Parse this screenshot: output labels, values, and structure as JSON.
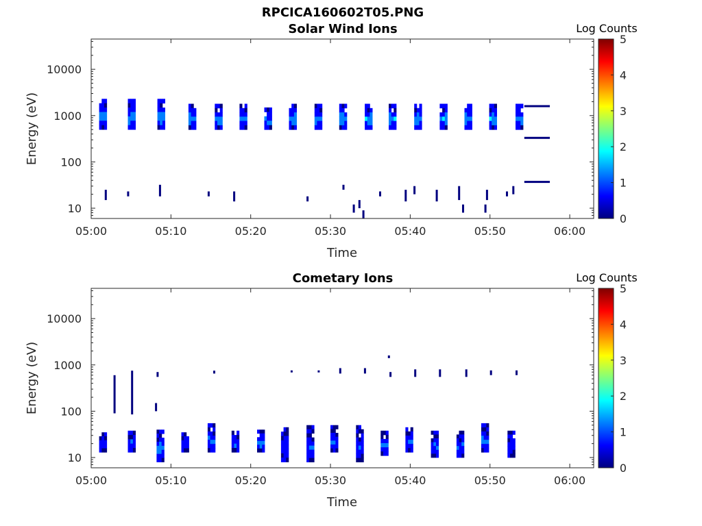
{
  "figure": {
    "title": "RPCICA160602T05.PNG"
  },
  "colors": {
    "map": [
      "#00007f",
      "#0000ff",
      "#007fff",
      "#00ffff",
      "#7fff7f",
      "#ffff00",
      "#ff7f00",
      "#ff0000",
      "#7f0000"
    ],
    "axis": "#262626"
  },
  "chart_data": [
    {
      "type": "heatmap",
      "title": "Solar Wind Ions",
      "xlabel": "Time",
      "ylabel": "Energy (eV)",
      "x_ticks": [
        "05:00",
        "05:10",
        "05:20",
        "05:30",
        "05:40",
        "05:50",
        "06:00"
      ],
      "y_ticks": [
        "10",
        "100",
        "1000",
        "10000"
      ],
      "y_scale": "log",
      "colorbar": {
        "label": "Log Counts",
        "ticks": [
          "0",
          "1",
          "2",
          "3",
          "4",
          "5"
        ],
        "range": [
          0,
          5
        ]
      },
      "xlim_minutes": [
        0,
        63
      ],
      "ylim": [
        6,
        45000
      ],
      "blocks": [
        {
          "t": 1.0,
          "e_lo": 500,
          "e_hi": 2300,
          "v": 1.4
        },
        {
          "t": 4.6,
          "e_lo": 500,
          "e_hi": 2300,
          "v": 1.5
        },
        {
          "t": 8.3,
          "e_lo": 500,
          "e_hi": 2300,
          "v": 1.6
        },
        {
          "t": 12.2,
          "e_lo": 500,
          "e_hi": 1800,
          "v": 1.4
        },
        {
          "t": 15.5,
          "e_lo": 500,
          "e_hi": 1800,
          "v": 1.4
        },
        {
          "t": 18.6,
          "e_lo": 500,
          "e_hi": 1800,
          "v": 1.4
        },
        {
          "t": 21.7,
          "e_lo": 500,
          "e_hi": 1500,
          "v": 1.4
        },
        {
          "t": 24.8,
          "e_lo": 500,
          "e_hi": 1800,
          "v": 1.5
        },
        {
          "t": 28.0,
          "e_lo": 500,
          "e_hi": 1800,
          "v": 1.5
        },
        {
          "t": 31.1,
          "e_lo": 500,
          "e_hi": 1800,
          "v": 1.6
        },
        {
          "t": 34.3,
          "e_lo": 500,
          "e_hi": 1800,
          "v": 1.6
        },
        {
          "t": 37.3,
          "e_lo": 500,
          "e_hi": 1800,
          "v": 1.5
        },
        {
          "t": 40.5,
          "e_lo": 500,
          "e_hi": 1800,
          "v": 1.6
        },
        {
          "t": 43.7,
          "e_lo": 500,
          "e_hi": 1800,
          "v": 1.5
        },
        {
          "t": 46.8,
          "e_lo": 500,
          "e_hi": 1800,
          "v": 1.5
        },
        {
          "t": 49.9,
          "e_lo": 500,
          "e_hi": 1800,
          "v": 1.5
        },
        {
          "t": 53.2,
          "e_lo": 500,
          "e_hi": 1800,
          "v": 1.5
        }
      ],
      "low_marks": [
        {
          "t": 1.7,
          "e_lo": 15,
          "e_hi": 25,
          "v": 0.3
        },
        {
          "t": 4.5,
          "e_lo": 18,
          "e_hi": 23,
          "v": 0.3
        },
        {
          "t": 8.5,
          "e_lo": 18,
          "e_hi": 32,
          "v": 0.3
        },
        {
          "t": 14.6,
          "e_lo": 18,
          "e_hi": 23,
          "v": 0.3
        },
        {
          "t": 17.8,
          "e_lo": 14,
          "e_hi": 23,
          "v": 0.3
        },
        {
          "t": 27.0,
          "e_lo": 14,
          "e_hi": 18,
          "v": 0.3
        },
        {
          "t": 31.5,
          "e_lo": 25,
          "e_hi": 32,
          "v": 0.3
        },
        {
          "t": 32.8,
          "e_lo": 8,
          "e_hi": 12,
          "v": 0.3
        },
        {
          "t": 33.5,
          "e_lo": 10,
          "e_hi": 15,
          "v": 0.3
        },
        {
          "t": 34.0,
          "e_lo": 6,
          "e_hi": 9,
          "v": 0.3
        },
        {
          "t": 36.1,
          "e_lo": 18,
          "e_hi": 23,
          "v": 0.3
        },
        {
          "t": 39.3,
          "e_lo": 14,
          "e_hi": 25,
          "v": 0.3
        },
        {
          "t": 40.4,
          "e_lo": 20,
          "e_hi": 30,
          "v": 0.3
        },
        {
          "t": 43.2,
          "e_lo": 14,
          "e_hi": 25,
          "v": 0.3
        },
        {
          "t": 46.0,
          "e_lo": 15,
          "e_hi": 30,
          "v": 0.3
        },
        {
          "t": 46.5,
          "e_lo": 8,
          "e_hi": 12,
          "v": 0.3
        },
        {
          "t": 49.5,
          "e_lo": 15,
          "e_hi": 25,
          "v": 0.3
        },
        {
          "t": 49.3,
          "e_lo": 8,
          "e_hi": 12,
          "v": 0.3
        },
        {
          "t": 52.0,
          "e_lo": 18,
          "e_hi": 23,
          "v": 0.3
        },
        {
          "t": 52.8,
          "e_lo": 20,
          "e_hi": 30,
          "v": 0.3
        }
      ],
      "lines": [
        {
          "t0": 54.3,
          "t1": 57.5,
          "e": 1600
        },
        {
          "t0": 54.3,
          "t1": 57.5,
          "e": 330
        },
        {
          "t0": 54.3,
          "t1": 57.5,
          "e": 37
        }
      ]
    },
    {
      "type": "heatmap",
      "title": "Cometary Ions",
      "xlabel": "Time",
      "ylabel": "Energy (eV)",
      "x_ticks": [
        "05:00",
        "05:10",
        "05:20",
        "05:30",
        "05:40",
        "05:50",
        "06:00"
      ],
      "y_ticks": [
        "10",
        "100",
        "1000",
        "10000"
      ],
      "y_scale": "log",
      "colorbar": {
        "label": "Log Counts",
        "ticks": [
          "0",
          "1",
          "2",
          "3",
          "4",
          "5"
        ],
        "range": [
          0,
          5
        ]
      },
      "xlim_minutes": [
        0,
        63
      ],
      "ylim": [
        6,
        45000
      ],
      "blocks": [
        {
          "t": 1.0,
          "e_lo": 13,
          "e_hi": 35,
          "v": 1.0
        },
        {
          "t": 4.6,
          "e_lo": 13,
          "e_hi": 38,
          "v": 1.2
        },
        {
          "t": 8.2,
          "e_lo": 8,
          "e_hi": 40,
          "v": 1.3
        },
        {
          "t": 11.3,
          "e_lo": 13,
          "e_hi": 35,
          "v": 0.9
        },
        {
          "t": 14.6,
          "e_lo": 13,
          "e_hi": 55,
          "v": 1.1
        },
        {
          "t": 17.6,
          "e_lo": 13,
          "e_hi": 38,
          "v": 1.1
        },
        {
          "t": 20.8,
          "e_lo": 13,
          "e_hi": 40,
          "v": 1.2
        },
        {
          "t": 23.8,
          "e_lo": 8,
          "e_hi": 45,
          "v": 0.9
        },
        {
          "t": 27.0,
          "e_lo": 8,
          "e_hi": 50,
          "v": 1.0
        },
        {
          "t": 30.0,
          "e_lo": 13,
          "e_hi": 50,
          "v": 1.1
        },
        {
          "t": 33.2,
          "e_lo": 8,
          "e_hi": 50,
          "v": 0.9
        },
        {
          "t": 36.3,
          "e_lo": 11,
          "e_hi": 38,
          "v": 1.1
        },
        {
          "t": 39.4,
          "e_lo": 13,
          "e_hi": 45,
          "v": 1.2
        },
        {
          "t": 42.6,
          "e_lo": 10,
          "e_hi": 38,
          "v": 1.1
        },
        {
          "t": 45.8,
          "e_lo": 10,
          "e_hi": 38,
          "v": 1.1
        },
        {
          "t": 48.9,
          "e_lo": 13,
          "e_hi": 55,
          "v": 1.2
        },
        {
          "t": 52.2,
          "e_lo": 10,
          "e_hi": 38,
          "v": 1.0
        }
      ],
      "mid_marks": [
        {
          "t": 2.8,
          "e_lo": 90,
          "e_hi": 600,
          "v": 0.3
        },
        {
          "t": 5.0,
          "e_lo": 85,
          "e_hi": 750,
          "v": 0.3
        },
        {
          "t": 8.0,
          "e_lo": 100,
          "e_hi": 150,
          "v": 0.3
        },
        {
          "t": 8.2,
          "e_lo": 550,
          "e_hi": 700,
          "v": 0.3
        },
        {
          "t": 15.3,
          "e_lo": 650,
          "e_hi": 750,
          "v": 0.3
        },
        {
          "t": 25.0,
          "e_lo": 700,
          "e_hi": 760,
          "v": 0.3
        },
        {
          "t": 28.4,
          "e_lo": 700,
          "e_hi": 760,
          "v": 0.3
        },
        {
          "t": 31.1,
          "e_lo": 650,
          "e_hi": 850,
          "v": 0.3
        },
        {
          "t": 34.2,
          "e_lo": 650,
          "e_hi": 850,
          "v": 0.3
        },
        {
          "t": 37.4,
          "e_lo": 550,
          "e_hi": 700,
          "v": 0.3
        },
        {
          "t": 37.2,
          "e_lo": 1400,
          "e_hi": 1600,
          "v": 0.3
        },
        {
          "t": 40.5,
          "e_lo": 550,
          "e_hi": 800,
          "v": 0.3
        },
        {
          "t": 43.6,
          "e_lo": 550,
          "e_hi": 800,
          "v": 0.3
        },
        {
          "t": 46.9,
          "e_lo": 550,
          "e_hi": 800,
          "v": 0.3
        },
        {
          "t": 50.0,
          "e_lo": 600,
          "e_hi": 760,
          "v": 0.3
        },
        {
          "t": 53.2,
          "e_lo": 600,
          "e_hi": 760,
          "v": 0.3
        }
      ]
    }
  ]
}
